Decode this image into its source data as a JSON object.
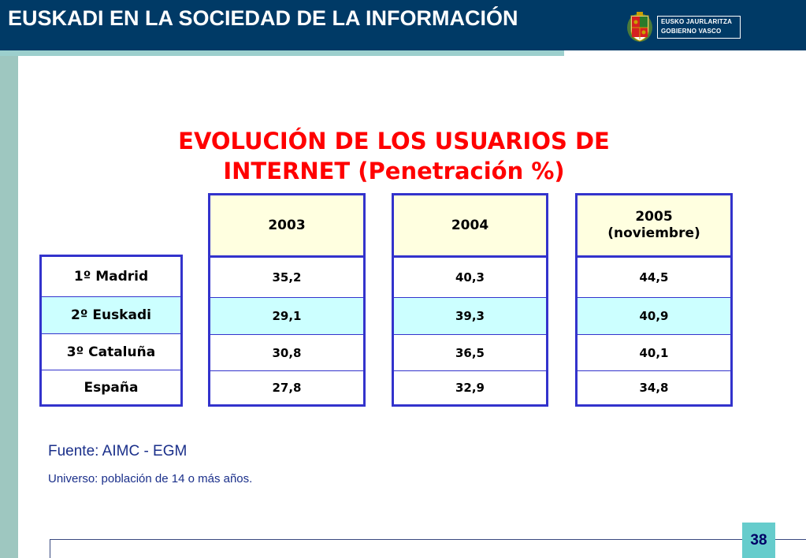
{
  "header": {
    "title": "EUSKADI EN LA SOCIEDAD DE LA INFORMACIÓN",
    "logo": {
      "line1": "EUSKO JAURLARITZA",
      "line2": "GOBIERNO VASCO",
      "icon": "basque-coat-of-arms-icon"
    }
  },
  "slide": {
    "title_line1": "EVOLUCIÓN DE LOS USUARIOS DE",
    "title_line2": "INTERNET (Penetración %)"
  },
  "table": {
    "rows": [
      "1º Madrid",
      "2º Euskadi",
      "3º Cataluña",
      "España"
    ],
    "years": [
      {
        "label": "2003",
        "sublabel": "",
        "values": [
          "35,2",
          "29,1",
          "30,8",
          "27,8"
        ]
      },
      {
        "label": "2004",
        "sublabel": "",
        "values": [
          "40,3",
          "39,3",
          "36,5",
          "32,9"
        ]
      },
      {
        "label": "2005",
        "sublabel": "(noviembre)",
        "values": [
          "44,5",
          "40,9",
          "40,1",
          "34,8"
        ]
      }
    ],
    "highlight_row_color": "#ccffff",
    "header_color": "#ffffe0",
    "border_color": "#3333cc"
  },
  "footer": {
    "source": "Fuente: AIMC - EGM",
    "universe": "Universo: población de 14 o más años.",
    "page_number": "38"
  },
  "colors": {
    "header_bg": "#003a66",
    "title_red": "#ff0000",
    "accent_teal": "#9ccfcd",
    "page_box": "#66cccc"
  }
}
